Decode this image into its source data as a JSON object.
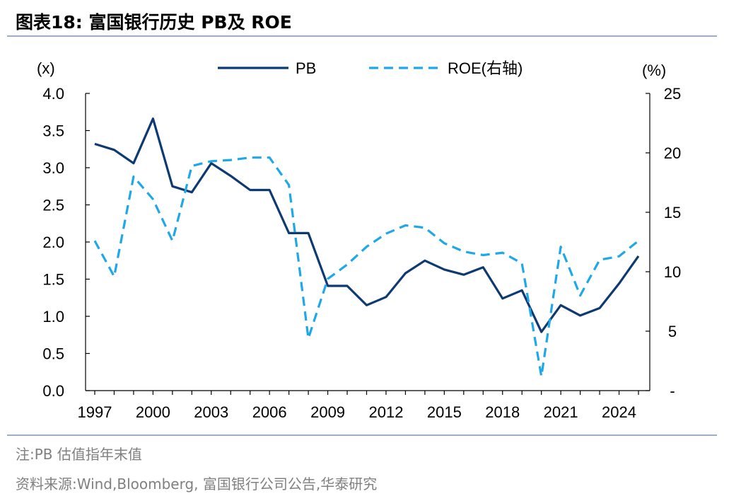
{
  "title": "图表18:   富国银行历史 PB及 ROE",
  "notes": {
    "note": "注:PB 估值指年末值",
    "source": "资料来源:Wind,Bloomberg, 富国银行公司公告,华泰研究"
  },
  "chart_data": {
    "type": "line",
    "x": [
      1997,
      1998,
      1999,
      2000,
      2001,
      2002,
      2003,
      2004,
      2005,
      2006,
      2007,
      2008,
      2009,
      2010,
      2011,
      2012,
      2013,
      2014,
      2015,
      2016,
      2017,
      2018,
      2019,
      2020,
      2021,
      2022,
      2023,
      2024,
      2025
    ],
    "x_tick_labels": [
      "1997",
      "2000",
      "2003",
      "2006",
      "2009",
      "2012",
      "2015",
      "2018",
      "2021",
      "2024"
    ],
    "xlim": [
      1997,
      2025
    ],
    "left_axis": {
      "unit_label": "(x)",
      "ylim": [
        0,
        4
      ],
      "tick_labels": [
        "0.0",
        "0.5",
        "1.0",
        "1.5",
        "2.0",
        "2.5",
        "3.0",
        "3.5",
        "4.0"
      ]
    },
    "right_axis": {
      "unit_label": "(%)",
      "ylim": [
        0,
        25
      ],
      "tick_labels": [
        "-",
        "5",
        "10",
        "15",
        "20",
        "25"
      ]
    },
    "grid": false,
    "legend_position": "top-center",
    "series": [
      {
        "name": "PB",
        "axis": "left",
        "style": "solid",
        "color": "#0d3a73",
        "values": [
          3.32,
          3.24,
          3.06,
          3.66,
          2.75,
          2.67,
          3.06,
          2.89,
          2.7,
          2.7,
          2.12,
          2.12,
          1.41,
          1.41,
          1.15,
          1.26,
          1.58,
          1.75,
          1.63,
          1.56,
          1.66,
          1.24,
          1.35,
          0.79,
          1.15,
          1.01,
          1.11,
          1.44,
          1.81
        ]
      },
      {
        "name": "ROE(右轴)",
        "axis": "right",
        "style": "dashed",
        "color": "#1fa8e8",
        "values": [
          12.6,
          9.6,
          18.0,
          16.1,
          12.6,
          18.9,
          19.3,
          19.4,
          19.6,
          19.6,
          17.3,
          4.4,
          9.4,
          10.6,
          12.1,
          13.2,
          13.9,
          13.7,
          12.4,
          11.7,
          11.4,
          11.6,
          10.7,
          1.2,
          12.1,
          8.0,
          11.0,
          11.3,
          12.6
        ]
      }
    ]
  }
}
